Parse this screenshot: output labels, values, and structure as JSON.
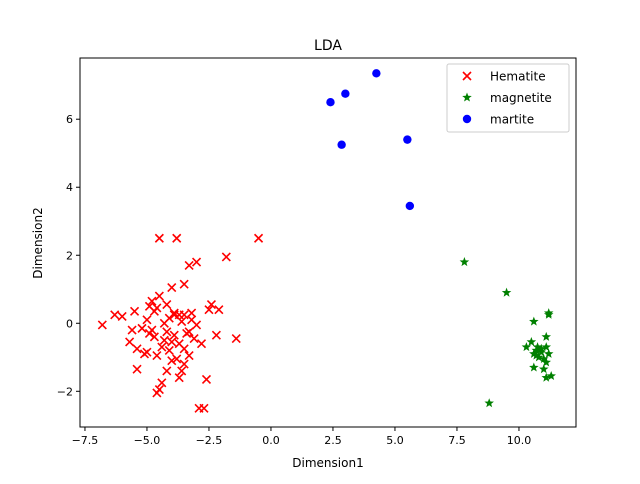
{
  "chart_data": {
    "type": "scatter",
    "title": "LDA",
    "xlabel": "Dimension1",
    "ylabel": "Dimension2",
    "xlim": [
      -7.7,
      12.3
    ],
    "ylim": [
      -3.05,
      7.8
    ],
    "xticks": [
      -7.5,
      -5.0,
      -2.5,
      0.0,
      2.5,
      5.0,
      7.5,
      10.0
    ],
    "xtick_labels": [
      "−7.5",
      "−5.0",
      "−2.5",
      "0.0",
      "2.5",
      "5.0",
      "7.5",
      "10.0"
    ],
    "yticks": [
      -2,
      0,
      2,
      4,
      6
    ],
    "ytick_labels": [
      "−2",
      "0",
      "2",
      "4",
      "6"
    ],
    "grid": false,
    "legend_position": "top-right",
    "series": [
      {
        "name": "Hematite",
        "marker": "x",
        "color": "#ff0000",
        "points": [
          [
            -4.5,
            2.5
          ],
          [
            -3.8,
            2.5
          ],
          [
            -0.5,
            2.5
          ],
          [
            -1.8,
            1.95
          ],
          [
            -3.0,
            1.8
          ],
          [
            -3.3,
            1.7
          ],
          [
            -4.0,
            1.05
          ],
          [
            -4.5,
            0.8
          ],
          [
            -4.8,
            0.65
          ],
          [
            -3.5,
            1.15
          ],
          [
            -6.8,
            -0.05
          ],
          [
            -6.3,
            0.25
          ],
          [
            -6.0,
            0.2
          ],
          [
            -5.5,
            0.35
          ],
          [
            -5.0,
            0.1
          ],
          [
            -4.6,
            0.45
          ],
          [
            -4.2,
            0.55
          ],
          [
            -3.9,
            0.3
          ],
          [
            -3.7,
            0.25
          ],
          [
            -3.5,
            0.25
          ],
          [
            -3.2,
            0.1
          ],
          [
            -3.0,
            -0.05
          ],
          [
            -2.4,
            0.55
          ],
          [
            -2.5,
            0.4
          ],
          [
            -2.1,
            0.4
          ],
          [
            -5.6,
            -0.2
          ],
          [
            -5.2,
            -0.15
          ],
          [
            -4.9,
            -0.3
          ],
          [
            -4.7,
            -0.4
          ],
          [
            -4.3,
            -0.5
          ],
          [
            -4.0,
            -0.55
          ],
          [
            -3.7,
            -0.6
          ],
          [
            -3.4,
            -0.3
          ],
          [
            -3.1,
            -0.45
          ],
          [
            -2.8,
            -0.6
          ],
          [
            -2.2,
            -0.35
          ],
          [
            -1.4,
            -0.45
          ],
          [
            -5.7,
            -0.55
          ],
          [
            -5.4,
            -0.75
          ],
          [
            -5.0,
            -0.85
          ],
          [
            -4.6,
            -0.95
          ],
          [
            -4.4,
            -0.7
          ],
          [
            -4.1,
            -0.8
          ],
          [
            -3.8,
            -1.05
          ],
          [
            -3.5,
            -1.2
          ],
          [
            -3.3,
            -0.95
          ],
          [
            -5.4,
            -1.35
          ],
          [
            -4.2,
            -1.4
          ],
          [
            -3.6,
            -1.4
          ],
          [
            -4.4,
            -1.75
          ],
          [
            -2.6,
            -1.65
          ],
          [
            -4.5,
            -1.95
          ],
          [
            -4.6,
            -2.05
          ],
          [
            -2.9,
            -2.5
          ],
          [
            -2.7,
            -2.5
          ],
          [
            -3.9,
            0.25
          ],
          [
            -4.1,
            0.15
          ],
          [
            -3.6,
            0.05
          ],
          [
            -4.8,
            -0.2
          ],
          [
            -3.2,
            0.3
          ],
          [
            -4.3,
            0.0
          ],
          [
            -3.9,
            -0.35
          ],
          [
            -3.5,
            -0.75
          ],
          [
            -4.0,
            -1.1
          ],
          [
            -3.3,
            -0.25
          ],
          [
            -4.7,
            0.35
          ],
          [
            -5.1,
            -0.9
          ],
          [
            -3.7,
            -1.6
          ],
          [
            -4.2,
            -0.25
          ],
          [
            -4.9,
            0.5
          ]
        ]
      },
      {
        "name": "magnetite",
        "marker": "*",
        "color": "#008000",
        "points": [
          [
            7.8,
            1.8
          ],
          [
            9.5,
            0.9
          ],
          [
            11.2,
            0.3
          ],
          [
            11.2,
            0.25
          ],
          [
            10.6,
            0.05
          ],
          [
            11.1,
            -0.4
          ],
          [
            10.5,
            -0.55
          ],
          [
            10.3,
            -0.7
          ],
          [
            10.7,
            -0.8
          ],
          [
            10.9,
            -0.75
          ],
          [
            11.1,
            -0.7
          ],
          [
            10.6,
            -0.9
          ],
          [
            10.8,
            -1.0
          ],
          [
            11.0,
            -1.05
          ],
          [
            10.9,
            -0.85
          ],
          [
            11.1,
            -1.15
          ],
          [
            10.6,
            -1.3
          ],
          [
            11.0,
            -1.35
          ],
          [
            11.3,
            -1.55
          ],
          [
            11.1,
            -1.6
          ],
          [
            8.8,
            -2.35
          ],
          [
            10.7,
            -0.95
          ],
          [
            11.2,
            -0.9
          ],
          [
            10.75,
            -0.7
          ]
        ]
      },
      {
        "name": "martite",
        "marker": "o",
        "color": "#0000ff",
        "points": [
          [
            4.25,
            7.35
          ],
          [
            3.0,
            6.75
          ],
          [
            2.4,
            6.5
          ],
          [
            5.5,
            5.4
          ],
          [
            2.85,
            5.25
          ],
          [
            5.6,
            3.45
          ]
        ]
      }
    ]
  }
}
